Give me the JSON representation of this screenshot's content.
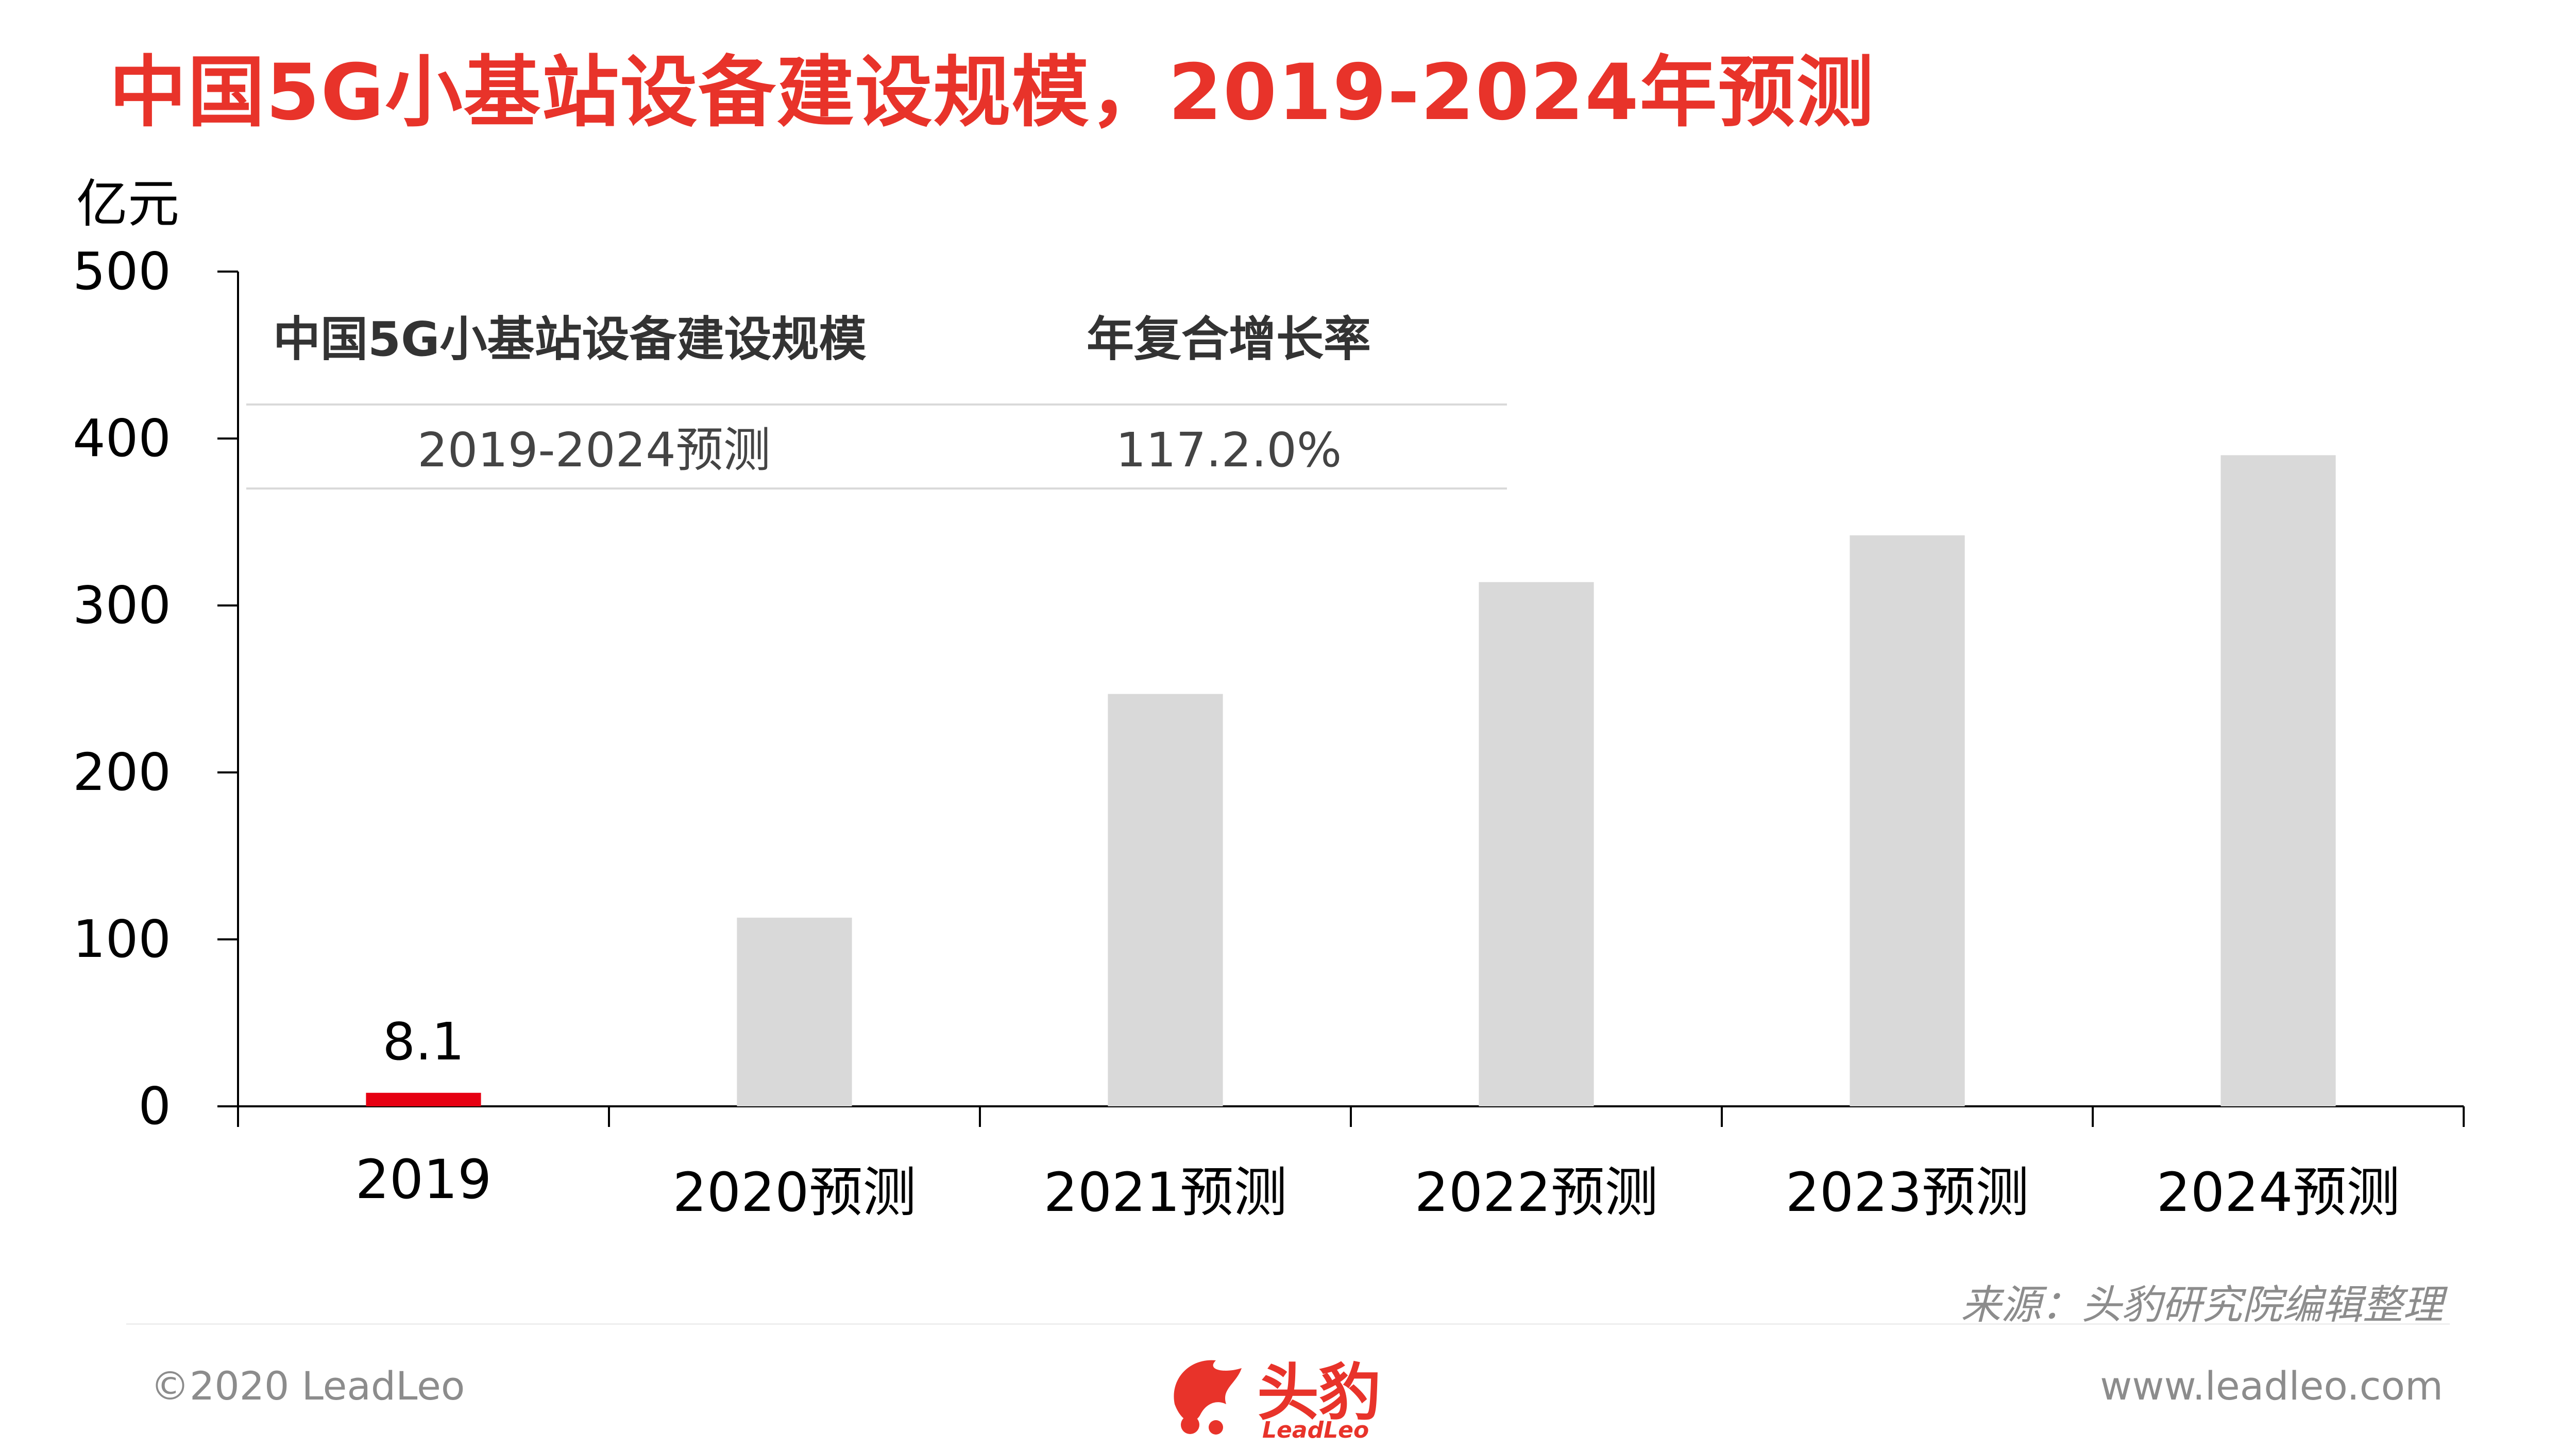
{
  "title": "中国5G小基站设备建设规模，2019-2024年预测",
  "colors": {
    "accent": "#e8332a",
    "highlight_bar": "#e60012",
    "forecast_bar": "#d9d9d9"
  },
  "summary_table": {
    "headers": [
      "中国5G小基站设备建设规模",
      "年复合增长率"
    ],
    "row": [
      "2019-2024预测",
      "117.2.0%"
    ]
  },
  "chart_data": {
    "type": "bar",
    "ylabel": "亿元",
    "ylim": [
      0,
      500
    ],
    "yticks": [
      "0",
      "100",
      "200",
      "300",
      "400",
      "500"
    ],
    "categories": [
      "2019",
      "2020预测",
      "2021预测",
      "2022预测",
      "2023预测",
      "2024预测"
    ],
    "values": [
      8.1,
      113,
      247,
      314,
      342,
      390
    ],
    "data_labels": [
      "8.1",
      "",
      "",
      "",
      "",
      ""
    ],
    "grid": false
  },
  "source": "来源：头豹研究院编辑整理",
  "footer": {
    "copyright": "©2020 LeadLeo",
    "website": "www.leadleo.com",
    "logo_text": "头豹",
    "logo_sub": "LeadLeo"
  }
}
